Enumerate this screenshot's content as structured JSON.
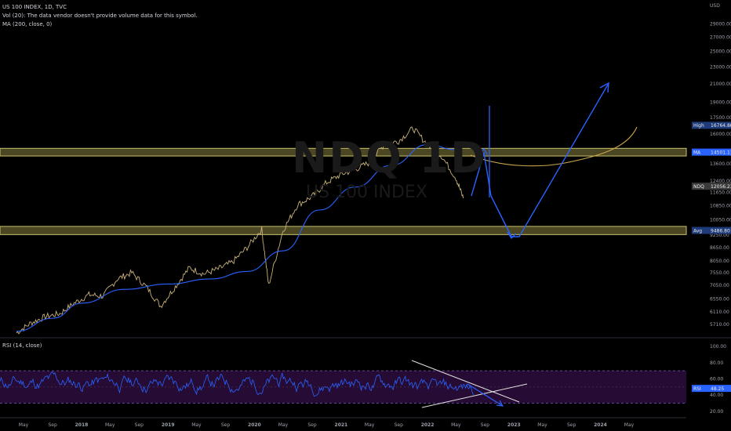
{
  "header": {
    "symbol_line": "US 100 INDEX, 1D, TVC",
    "vol_line": "Vol (20): The data vendor doesn't provide volume data for this symbol.",
    "ma_line": "MA (200, close, 0)",
    "rsi_line": "RSI (14, close)"
  },
  "watermark": {
    "ticker": "NDQ 1D",
    "name": "US 100 INDEX"
  },
  "colors": {
    "background": "#000000",
    "price": "#c9b27a",
    "ma": "#2962ff",
    "ma_projection": "#c9a64a",
    "zone": "#8a8240",
    "drawing": "#2962ff",
    "rsi_line": "#2962ff",
    "rsi_band": "#2a0d3a",
    "trendlines": "#e0e0e0"
  },
  "chart_data": [
    {
      "type": "line",
      "title": "US 100 INDEX",
      "ylabel": "USD",
      "yscale": "log",
      "ylim": [
        5400,
        31000
      ],
      "grid": false,
      "y_ticks": [
        5710,
        6110,
        6550,
        7050,
        7550,
        8050,
        8650,
        9250,
        10050,
        10850,
        11650,
        12400,
        13600,
        14500,
        16000,
        17500,
        19000,
        21000,
        23000,
        25000,
        27000,
        29000
      ],
      "y_tick_labels": [
        "5710.00",
        "6110.00",
        "6550.00",
        "7050.00",
        "7550.00",
        "8050.00",
        "8650.00",
        "9250.00",
        "10050.00",
        "10850.00",
        "11650.00",
        "12400.00",
        "13600.00",
        "14500.00",
        "16000.00",
        "17500.00",
        "19000.00",
        "21000.00",
        "23000.00",
        "25000.00",
        "27000.00",
        "29000.00"
      ],
      "x_ticks": [
        "May",
        "Sep",
        "2018",
        "May",
        "Sep",
        "2019",
        "May",
        "Sep",
        "2020",
        "May",
        "Sep",
        "2021",
        "May",
        "Sep",
        "2022",
        "May",
        "Sep",
        "2023",
        "May",
        "Sep",
        "2024",
        "May"
      ],
      "x_tick_dates": [
        "2017-05",
        "2017-09",
        "2018-01",
        "2018-05",
        "2018-09",
        "2019-01",
        "2019-05",
        "2019-09",
        "2020-01",
        "2020-05",
        "2020-09",
        "2021-01",
        "2021-05",
        "2021-09",
        "2022-01",
        "2022-05",
        "2022-09",
        "2023-01",
        "2023-05",
        "2023-09",
        "2024-01",
        "2024-05"
      ],
      "series": [
        {
          "name": "US 100 INDEX",
          "x": [
            "2017-04",
            "2017-06",
            "2017-08",
            "2017-10",
            "2017-12",
            "2018-02",
            "2018-04",
            "2018-06",
            "2018-08",
            "2018-10",
            "2018-12",
            "2019-02",
            "2019-04",
            "2019-06",
            "2019-08",
            "2019-10",
            "2019-12",
            "2020-02",
            "2020-03",
            "2020-05",
            "2020-07",
            "2020-09",
            "2020-11",
            "2021-01",
            "2021-03",
            "2021-05",
            "2021-07",
            "2021-09",
            "2021-11",
            "2022-01",
            "2022-03",
            "2022-05",
            "2022-06"
          ],
          "y": [
            5450,
            5750,
            5950,
            6050,
            6400,
            6700,
            6650,
            7300,
            7550,
            7000,
            6300,
            7000,
            7750,
            7500,
            7700,
            8000,
            8650,
            9550,
            7050,
            9500,
            10900,
            11400,
            12300,
            12850,
            13200,
            13700,
            15100,
            15400,
            16500,
            15100,
            14200,
            12600,
            11300
          ]
        },
        {
          "name": "MA (200, close, 0)",
          "x": [
            "2017-04",
            "2017-09",
            "2018-01",
            "2018-07",
            "2019-01",
            "2019-07",
            "2019-12",
            "2020-05",
            "2020-10",
            "2021-03",
            "2021-08",
            "2022-01",
            "2022-05"
          ],
          "y": [
            5500,
            5900,
            6400,
            6900,
            7100,
            7300,
            7600,
            8500,
            10600,
            12000,
            13500,
            15100,
            14700
          ]
        }
      ],
      "zones": [
        {
          "label": "MA",
          "value_label": "14501.11",
          "low": 14200,
          "high": 14800
        },
        {
          "label": "Avg",
          "value_label": "9486.80",
          "low": 9280,
          "high": 9700
        }
      ],
      "price_tags": [
        {
          "label": "High",
          "value_label": "16764.86",
          "value": 16764.86
        },
        {
          "label": "NDQ",
          "value_label": "12056.23",
          "value": 12056.23
        }
      ]
    },
    {
      "type": "line",
      "title": "RSI (14, close)",
      "ylim": [
        15,
        104
      ],
      "y_ticks": [
        100,
        80,
        60,
        40,
        20
      ],
      "y_tick_labels": [
        "100.00",
        "80.00",
        "60.00",
        "40.00",
        "20.00"
      ],
      "bands": [
        30,
        70
      ],
      "price_tag": {
        "label": "RSI",
        "value_label": "48.25",
        "value": 48.25
      }
    }
  ]
}
